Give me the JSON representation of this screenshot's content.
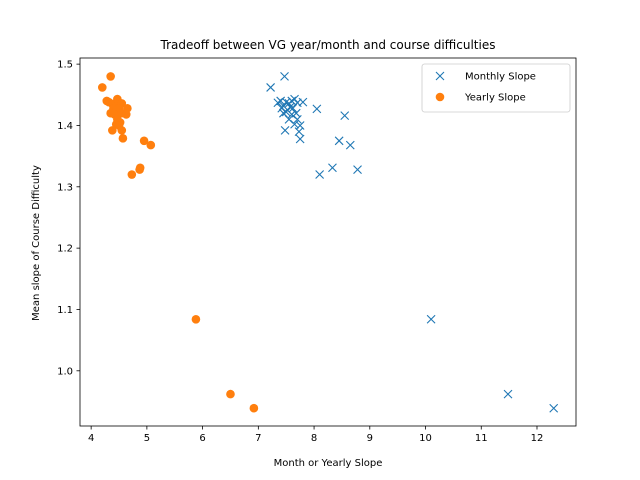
{
  "chart_data": {
    "type": "scatter",
    "title": "Tradeoff between VG year/month and course difficulties",
    "xlabel": "Month or Yearly Slope",
    "ylabel": "Mean slope of Course Difficulty",
    "xlim": [
      3.8,
      12.7
    ],
    "ylim": [
      0.91,
      1.51
    ],
    "xticks": [
      4,
      5,
      6,
      7,
      8,
      9,
      10,
      11,
      12
    ],
    "xtick_labels": [
      "4",
      "5",
      "6",
      "7",
      "8",
      "9",
      "10",
      "11",
      "12"
    ],
    "yticks": [
      1.0,
      1.1,
      1.2,
      1.3,
      1.4,
      1.5
    ],
    "ytick_labels": [
      "1.0",
      "1.1",
      "1.2",
      "1.3",
      "1.4",
      "1.5"
    ],
    "grid": false,
    "legend_position": "top-right",
    "series": [
      {
        "name": "Monthly Slope",
        "marker": "x",
        "color": "#1f77b4",
        "points": [
          [
            7.22,
            1.462
          ],
          [
            7.47,
            1.48
          ],
          [
            7.35,
            1.437
          ],
          [
            7.4,
            1.44
          ],
          [
            7.45,
            1.432
          ],
          [
            7.5,
            1.438
          ],
          [
            7.55,
            1.436
          ],
          [
            7.6,
            1.44
          ],
          [
            7.65,
            1.443
          ],
          [
            7.7,
            1.437
          ],
          [
            7.8,
            1.438
          ],
          [
            7.42,
            1.428
          ],
          [
            7.5,
            1.422
          ],
          [
            7.57,
            1.43
          ],
          [
            7.62,
            1.428
          ],
          [
            7.45,
            1.42
          ],
          [
            7.6,
            1.418
          ],
          [
            7.68,
            1.42
          ],
          [
            7.55,
            1.41
          ],
          [
            7.7,
            1.41
          ],
          [
            7.65,
            1.402
          ],
          [
            7.75,
            1.4
          ],
          [
            7.48,
            1.392
          ],
          [
            7.73,
            1.39
          ],
          [
            7.75,
            1.378
          ],
          [
            8.05,
            1.427
          ],
          [
            8.55,
            1.416
          ],
          [
            8.45,
            1.375
          ],
          [
            8.65,
            1.368
          ],
          [
            8.33,
            1.331
          ],
          [
            8.1,
            1.32
          ],
          [
            8.78,
            1.328
          ],
          [
            10.1,
            1.084
          ],
          [
            11.48,
            0.962
          ],
          [
            12.3,
            0.939
          ]
        ]
      },
      {
        "name": "Yearly Slope",
        "marker": "o",
        "color": "#ff7f0e",
        "points": [
          [
            4.2,
            1.462
          ],
          [
            4.35,
            1.48
          ],
          [
            4.28,
            1.44
          ],
          [
            4.32,
            1.438
          ],
          [
            4.38,
            1.435
          ],
          [
            4.47,
            1.443
          ],
          [
            4.5,
            1.437
          ],
          [
            4.55,
            1.436
          ],
          [
            4.4,
            1.428
          ],
          [
            4.45,
            1.43
          ],
          [
            4.5,
            1.428
          ],
          [
            4.65,
            1.428
          ],
          [
            4.35,
            1.42
          ],
          [
            4.42,
            1.418
          ],
          [
            4.55,
            1.42
          ],
          [
            4.63,
            1.418
          ],
          [
            4.47,
            1.41
          ],
          [
            4.52,
            1.405
          ],
          [
            4.45,
            1.402
          ],
          [
            4.5,
            1.4
          ],
          [
            4.38,
            1.392
          ],
          [
            4.55,
            1.392
          ],
          [
            4.57,
            1.379
          ],
          [
            4.95,
            1.375
          ],
          [
            5.07,
            1.368
          ],
          [
            4.88,
            1.331
          ],
          [
            4.87,
            1.328
          ],
          [
            4.73,
            1.32
          ],
          [
            5.88,
            1.084
          ],
          [
            6.5,
            0.962
          ],
          [
            6.92,
            0.939
          ]
        ]
      }
    ]
  }
}
